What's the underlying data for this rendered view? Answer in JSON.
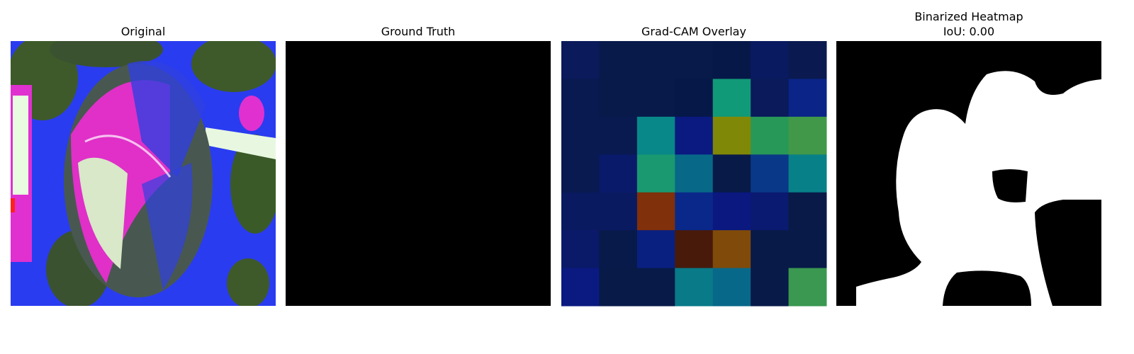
{
  "panels": [
    {
      "title_lines": [
        "Original"
      ]
    },
    {
      "title_lines": [
        "Ground Truth"
      ]
    },
    {
      "title_lines": [
        "Grad-CAM Overlay"
      ],
      "cells": [
        [
          "#0a1a5a",
          "#081a4a",
          "#081a4a",
          "#081a4a",
          "#061848",
          "#0a1a60",
          "#0a1a50"
        ],
        [
          "#081a50",
          "#081a4a",
          "#081a4a",
          "#061848",
          "#109a78",
          "#0a1a5a",
          "#0a2488"
        ],
        [
          "#081a50",
          "#081a50",
          "#088888",
          "#0a1a80",
          "#808808",
          "#289858",
          "#409848"
        ],
        [
          "#081a50",
          "#0a1a6a",
          "#1a9870",
          "#086888",
          "#081a48",
          "#0a3888",
          "#088088"
        ],
        [
          "#0a1a60",
          "#0a1a60",
          "#80300a",
          "#0a288a",
          "#0a1880",
          "#0a1a70",
          "#0a1a48"
        ],
        [
          "#0a1a68",
          "#081a4a",
          "#0a2080",
          "#481a0a",
          "#804a0a",
          "#081a48",
          "#081a48"
        ],
        [
          "#0a1a80",
          "#081a48",
          "#081a48",
          "#087a88",
          "#08688a",
          "#081a48",
          "#3a9850"
        ]
      ]
    },
    {
      "title_lines": [
        "Binarized Heatmap",
        "IoU: 0.00"
      ]
    }
  ]
}
